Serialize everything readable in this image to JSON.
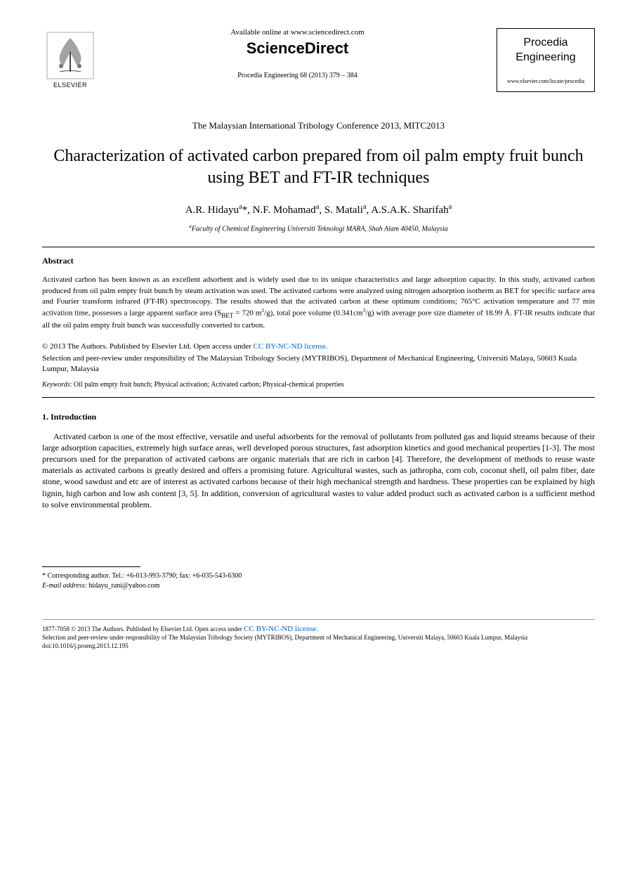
{
  "header": {
    "available_online": "Available online at www.sciencedirect.com",
    "sciencedirect_label": "ScienceDirect",
    "journal_ref": "Procedia Engineering 68 (2013) 379 – 384",
    "elsevier_label": "ELSEVIER",
    "journal_box_line1": "Procedia",
    "journal_box_line2": "Engineering",
    "journal_url": "www.elsevier.com/locate/procedia"
  },
  "conference": "The Malaysian International Tribology Conference 2013, MITC2013",
  "title": "Characterization of activated carbon prepared from oil palm empty fruit bunch using BET and FT-IR techniques",
  "authors_html": "A.R. Hidayu<sup>a</sup>*, N.F. Mohamad<sup>a</sup>, S. Matali<sup>a</sup>, A.S.A.K. Sharifah<sup>a</sup>",
  "affiliation_html": "<sup>a</sup>Faculty of Chemical Engineering Universiti Teknologi MARA, Shah Alam 40450, Malaysia",
  "abstract": {
    "heading": "Abstract",
    "text_html": "Activated carbon has been known as an excellent adsorbent and is widely used due to its unique characteristics and large adsorption capacity. In this study, activated carbon produced from oil palm empty fruit bunch by steam activation was used. The activated carbons were analyzed using nitrogen adsorption isotherm as BET for specific surface area and Fourier transform infrared (FT-IR) spectroscopy. The results showed that the activated carbon at these optimum conditions; 765°C activation temperature and 77 min activation time, possesses a large apparent surface area (S<sub>BET</sub> = 720 m<sup>2</sup>/g), total pore volume (0.341cm<sup>3</sup>/g) with average pore size diameter of 18.99 Å. FT-IR results indicate that all the oil palm empty fruit bunch was successfully converted to carbon."
  },
  "copyright": {
    "line1_prefix": "© 2013 The Authors. Published by Elsevier Ltd. ",
    "open_access": "Open access under ",
    "license_text": "CC BY-NC-ND license.",
    "line2": "Selection and peer-review under responsibility of The Malaysian Tribology Society (MYTRIBOS), Department of Mechanical Engineering, Universiti Malaya, 50603 Kuala Lumpur, Malaysia"
  },
  "keywords": {
    "label": "Keywords",
    "text": ": Oil palm empty fruit bunch; Physical activation; Activated carbon; Physical-chemical properties"
  },
  "intro": {
    "heading": "1. Introduction",
    "paragraph": "Activated carbon is one of the most effective, versatile and useful adsorbents for the removal of pollutants from polluted gas and liquid streams because of their large adsorption capacities, extremely high surface areas, well developed porous structures, fast adsorption kinetics and good mechanical properties [1-3]. The most precursors used for the preparation of activated carbons are organic materials that are rich in carbon [4]. Therefore, the development of methods to reuse waste materials as activated carbons is greatly desired and offers a promising future. Agricultural wastes, such as jathropha, corn cob, coconut shell, oil palm fiber, date stone, wood sawdust and etc are of interest as activated carbons because of their high mechanical strength and hardness. These properties can be explained by high lignin, high carbon and low ash content [3, 5]. In addition, conversion of agricultural wastes to value added product such as activated carbon is a sufficient method to solve environmental problem."
  },
  "footnote": {
    "corresponding": "* Corresponding author. Tel.: +6-013-993-3790; fax: +6-035-543-6300",
    "email_label": "E-mail address:",
    "email": " hidayu_rani@yahoo.com"
  },
  "footer": {
    "issn_line_prefix": "1877-7058 © 2013 The Authors. Published by Elsevier Ltd. ",
    "open_access": "Open access under ",
    "license_text": "CC BY-NC-ND license.",
    "line2": "Selection and peer-review under responsibility of The Malaysian Tribology Society (MYTRIBOS), Department of Mechanical Engineering, Universiti Malaya, 50603 Kuala Lumpur, Malaysia",
    "doi": "doi:10.1016/j.proeng.2013.12.195"
  },
  "colors": {
    "text": "#000000",
    "link": "#0066cc",
    "background": "#ffffff",
    "rule_light": "#999999"
  }
}
